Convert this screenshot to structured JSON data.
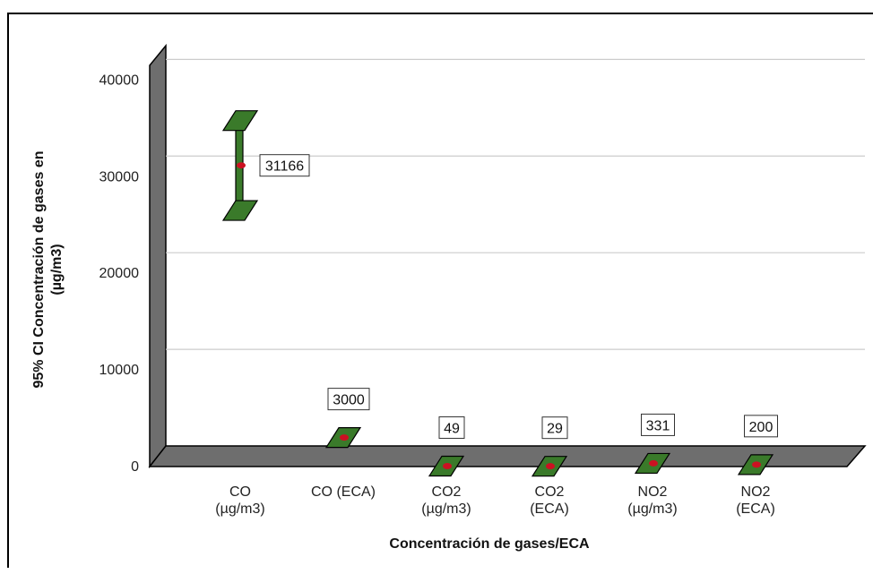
{
  "chart_data": {
    "type": "error-bar",
    "xlabel": "Concentración de gases/ECA",
    "ylabel_line1": "95% CI Concentración de gases en",
    "ylabel_line2": "(µg/m3)",
    "ylim": [
      0,
      43000
    ],
    "yticks": [
      0,
      10000,
      20000,
      30000,
      40000
    ],
    "grid": true,
    "categories": [
      {
        "line1": "CO",
        "line2": "(µg/m3)"
      },
      {
        "line1": "CO (ECA)",
        "line2": ""
      },
      {
        "line1": "CO2",
        "line2": "(µg/m3)"
      },
      {
        "line1": "CO2",
        "line2": "(ECA)"
      },
      {
        "line1": "NO2",
        "line2": "(µg/m3)"
      },
      {
        "line1": "NO2",
        "line2": "(ECA)"
      }
    ],
    "means": [
      31166,
      3000,
      49,
      29,
      331,
      200
    ],
    "lower": [
      26500,
      3000,
      49,
      29,
      200,
      200
    ],
    "upper": [
      35800,
      3000,
      49,
      29,
      460,
      200
    ],
    "data_labels": [
      "31166",
      "3000",
      "49",
      "29",
      "331",
      "200"
    ],
    "colors": {
      "bar": "#3a7a2a",
      "mean": "#cc1122",
      "wall": "#6e6e6e",
      "grid": "#cccccc"
    }
  }
}
